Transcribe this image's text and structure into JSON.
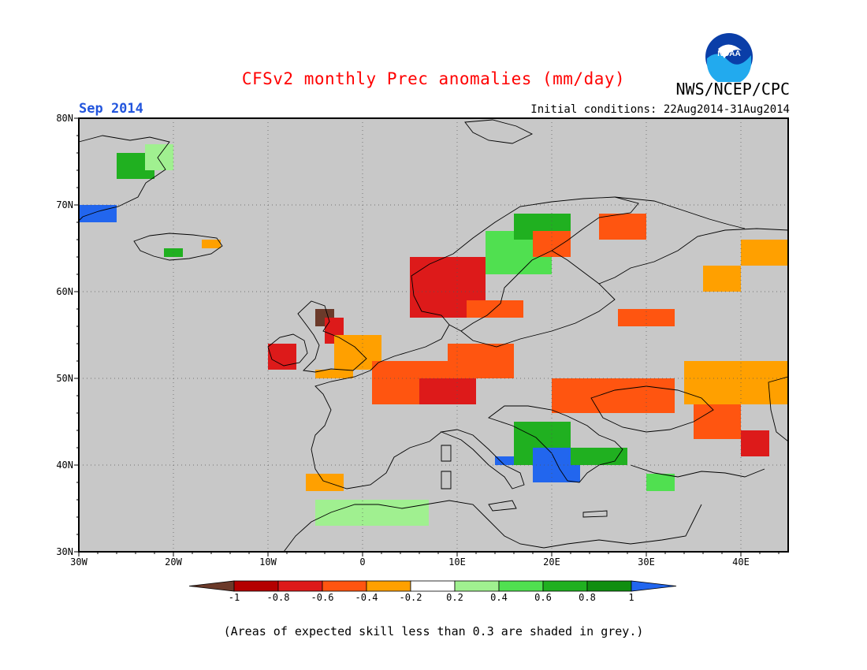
{
  "title": "CFSv2 monthly Prec anomalies (mm/day)",
  "org": "NWS/NCEP/CPC",
  "logo_text": "NOAA",
  "month": "Sep 2014",
  "initial_conditions": "Initial conditions: 22Aug2014-31Aug2014",
  "note": "(Areas of expected skill less than 0.3 are shaded in grey.)",
  "map": {
    "projection": "lat-lon",
    "lon_range": [
      -30,
      45
    ],
    "lat_range": [
      30,
      80
    ],
    "lat_labels": [
      "80N",
      "70N",
      "60N",
      "50N",
      "40N",
      "30N"
    ],
    "lon_labels": [
      "30W",
      "20W",
      "10W",
      "0",
      "10E",
      "20E",
      "30E",
      "40E"
    ],
    "no_skill_color": "#c8c8c8",
    "grid": "dotted"
  },
  "colorbar": {
    "labels": [
      "-1",
      "-0.8",
      "-0.6",
      "-0.4",
      "-0.2",
      "0.2",
      "0.4",
      "0.6",
      "0.8",
      "1"
    ],
    "colors": [
      "#6b3a2a",
      "#b40000",
      "#dd1a1a",
      "#ff5510",
      "#ffa000",
      "#ffffff",
      "#a0f090",
      "#50e050",
      "#20b020",
      "#108e10",
      "#2266ee"
    ]
  },
  "chart_data": {
    "type": "heatmap",
    "title": "CFSv2 monthly Prec anomalies (mm/day)",
    "x_range": [
      -30,
      45
    ],
    "y_range": [
      30,
      80
    ],
    "regions": [
      {
        "lon": [
          -26,
          -22
        ],
        "lat": [
          73,
          76
        ],
        "value": 0.7
      },
      {
        "lon": [
          -23,
          -20
        ],
        "lat": [
          74,
          77
        ],
        "value": 0.3
      },
      {
        "lon": [
          -30,
          -26
        ],
        "lat": [
          68,
          70
        ],
        "value": 1.0
      },
      {
        "lon": [
          -21,
          -19
        ],
        "lat": [
          64,
          65
        ],
        "value": 0.7
      },
      {
        "lon": [
          -17,
          -15
        ],
        "lat": [
          65,
          66
        ],
        "value": -0.3
      },
      {
        "lon": [
          -10,
          -7
        ],
        "lat": [
          51,
          54
        ],
        "value": -0.7
      },
      {
        "lon": [
          -5,
          -3
        ],
        "lat": [
          56,
          58
        ],
        "value": -1.0
      },
      {
        "lon": [
          -4,
          -2
        ],
        "lat": [
          54,
          57
        ],
        "value": -0.7
      },
      {
        "lon": [
          -3,
          2
        ],
        "lat": [
          51,
          55
        ],
        "value": -0.4
      },
      {
        "lon": [
          -5,
          -1
        ],
        "lat": [
          50,
          51
        ],
        "value": -0.3
      },
      {
        "lon": [
          5,
          13
        ],
        "lat": [
          57,
          64
        ],
        "value": -0.7
      },
      {
        "lon": [
          11,
          17
        ],
        "lat": [
          57,
          59
        ],
        "value": -0.5
      },
      {
        "lon": [
          13,
          20
        ],
        "lat": [
          62,
          67
        ],
        "value": 0.5
      },
      {
        "lon": [
          16,
          22
        ],
        "lat": [
          66,
          69
        ],
        "value": 0.7
      },
      {
        "lon": [
          18,
          22
        ],
        "lat": [
          64,
          67
        ],
        "value": -0.5
      },
      {
        "lon": [
          25,
          30
        ],
        "lat": [
          66,
          69
        ],
        "value": -0.5
      },
      {
        "lon": [
          27,
          33
        ],
        "lat": [
          56,
          58
        ],
        "value": -0.5
      },
      {
        "lon": [
          36,
          40
        ],
        "lat": [
          60,
          63
        ],
        "value": -0.3
      },
      {
        "lon": [
          40,
          45
        ],
        "lat": [
          63,
          66
        ],
        "value": -0.3
      },
      {
        "lon": [
          1,
          9
        ],
        "lat": [
          47,
          52
        ],
        "value": -0.5
      },
      {
        "lon": [
          6,
          12
        ],
        "lat": [
          47,
          50
        ],
        "value": -0.8
      },
      {
        "lon": [
          9,
          16
        ],
        "lat": [
          50,
          54
        ],
        "value": -0.5
      },
      {
        "lon": [
          20,
          33
        ],
        "lat": [
          46,
          50
        ],
        "value": -0.5
      },
      {
        "lon": [
          34,
          45
        ],
        "lat": [
          47,
          52
        ],
        "value": -0.3
      },
      {
        "lon": [
          35,
          40
        ],
        "lat": [
          43,
          47
        ],
        "value": -0.5
      },
      {
        "lon": [
          40,
          43
        ],
        "lat": [
          41,
          44
        ],
        "value": -0.8
      },
      {
        "lon": [
          16,
          22
        ],
        "lat": [
          40,
          45
        ],
        "value": 0.6
      },
      {
        "lon": [
          18,
          23
        ],
        "lat": [
          38,
          42
        ],
        "value": 1.0
      },
      {
        "lon": [
          22,
          28
        ],
        "lat": [
          40,
          42
        ],
        "value": 0.7
      },
      {
        "lon": [
          -6,
          -2
        ],
        "lat": [
          37,
          39
        ],
        "value": -0.3
      },
      {
        "lon": [
          -5,
          7
        ],
        "lat": [
          33,
          36
        ],
        "value": 0.3
      },
      {
        "lon": [
          30,
          33
        ],
        "lat": [
          37,
          39
        ],
        "value": 0.5
      },
      {
        "lon": [
          14,
          16
        ],
        "lat": [
          40,
          41
        ],
        "value": 1.0
      }
    ]
  }
}
